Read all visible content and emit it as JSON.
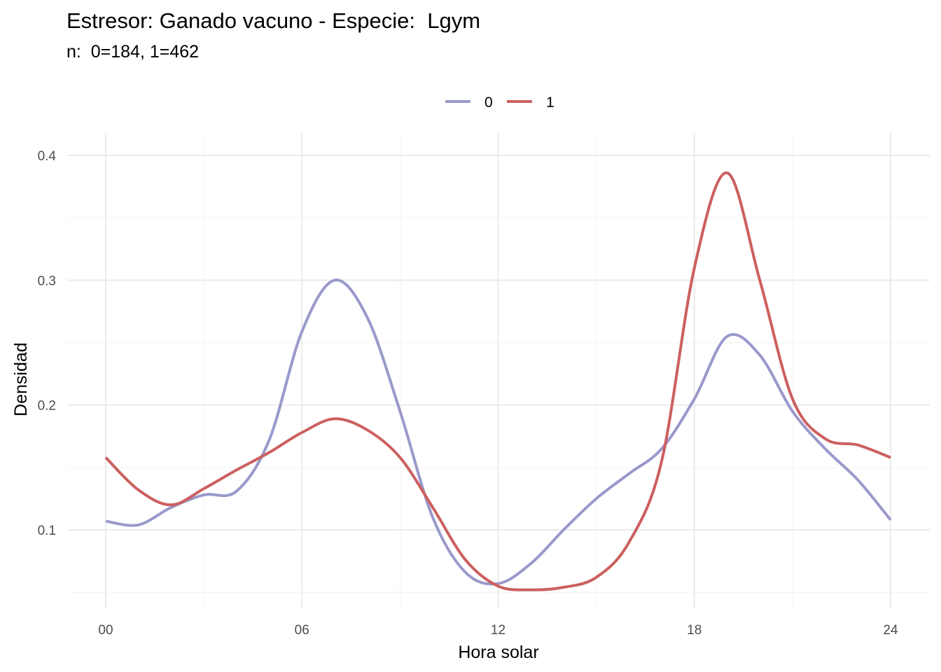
{
  "title": "Estresor: Ganado vacuno - Especie:  Lgym",
  "subtitle": "n:  0=184, 1=462",
  "chart_data": {
    "type": "line",
    "title": "Estresor: Ganado vacuno - Especie:  Lgym",
    "subtitle": "n:  0=184, 1=462",
    "xlabel": "Hora solar",
    "ylabel": "Densidad",
    "xlim": [
      0,
      24
    ],
    "ylim": [
      0.05,
      0.4
    ],
    "x_ticks": [
      0,
      6,
      12,
      18,
      24
    ],
    "x_tick_labels": [
      "00",
      "06",
      "12",
      "18",
      "24"
    ],
    "y_ticks": [
      0.1,
      0.2,
      0.3,
      0.4
    ],
    "y_tick_labels": [
      "0.1",
      "0.2",
      "0.3",
      "0.4"
    ],
    "grid": true,
    "legend_position": "top",
    "series": [
      {
        "name": "0",
        "color": "#9999cc",
        "x": [
          0,
          1,
          2,
          3,
          4,
          5,
          6,
          7,
          8,
          9,
          10,
          11,
          12,
          13,
          14,
          15,
          16,
          17,
          18,
          19,
          20,
          21,
          22,
          23,
          24
        ],
        "y": [
          0.107,
          0.104,
          0.118,
          0.128,
          0.131,
          0.172,
          0.259,
          0.3,
          0.27,
          0.195,
          0.11,
          0.066,
          0.057,
          0.073,
          0.1,
          0.125,
          0.145,
          0.165,
          0.205,
          0.255,
          0.24,
          0.195,
          0.165,
          0.14,
          0.108
        ]
      },
      {
        "name": "1",
        "color": "#cc6060",
        "x": [
          0,
          1,
          2,
          3,
          4,
          5,
          6,
          7,
          8,
          9,
          10,
          11,
          12,
          13,
          14,
          15,
          16,
          17,
          18,
          19,
          20,
          21,
          22,
          23,
          24
        ],
        "y": [
          0.158,
          0.132,
          0.12,
          0.133,
          0.148,
          0.162,
          0.178,
          0.189,
          0.18,
          0.158,
          0.118,
          0.076,
          0.055,
          0.052,
          0.054,
          0.062,
          0.09,
          0.155,
          0.31,
          0.386,
          0.3,
          0.205,
          0.173,
          0.168,
          0.158
        ]
      }
    ]
  }
}
